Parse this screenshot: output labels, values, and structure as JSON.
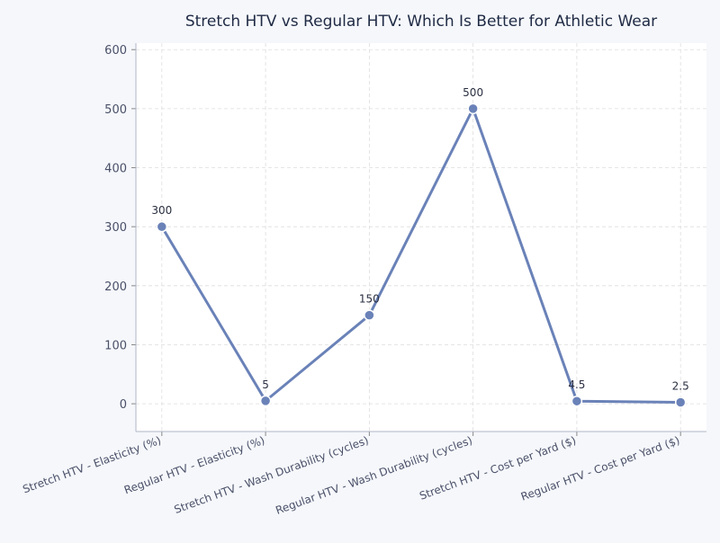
{
  "chart_data": {
    "type": "line",
    "title": "Stretch HTV vs Regular HTV: Which Is Better for Athletic Wear",
    "xlabel": "",
    "ylabel": "",
    "categories": [
      "Stretch HTV - Elasticity (%)",
      "Regular HTV - Elasticity (%)",
      "Stretch HTV - Wash Durability (cycles)",
      "Regular HTV - Wash Durability (cycles)",
      "Stretch HTV - Cost per Yard ($)",
      "Regular HTV - Cost per Yard ($)"
    ],
    "values": [
      300,
      5,
      150,
      500,
      4.5,
      2.5
    ],
    "data_labels": [
      "300",
      "5",
      "150",
      "500",
      "4.5",
      "2.5"
    ],
    "ylim": [
      -47,
      611
    ],
    "yticks": [
      0,
      100,
      200,
      300,
      400,
      500,
      600
    ],
    "grid": true,
    "legend": "none",
    "colors": {
      "line": "#6a82b8",
      "background": "#f5f7fb",
      "plot": "#ffffff",
      "title": "#1f2a44",
      "tick": "#4a5068"
    }
  }
}
